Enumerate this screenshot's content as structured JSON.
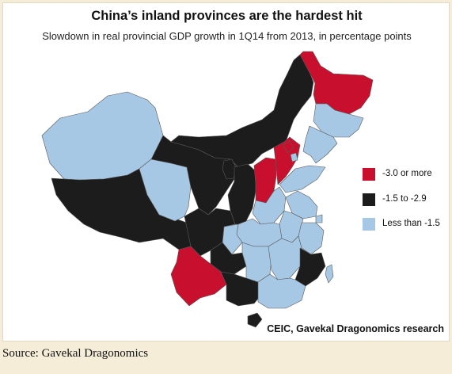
{
  "figure": {
    "title": "China’s inland provinces are the hardest hit",
    "subtitle": "Slowdown in real provincial GDP growth in 1Q14 from 2013, in percentage points",
    "credit": "CEIC, Gavekal Dragonomics research"
  },
  "legend": {
    "items": [
      {
        "label": "-3.0 or more",
        "color": "#c8102e"
      },
      {
        "label": "-1.5 to -2.9",
        "color": "#1c1c1c"
      },
      {
        "label": "Less than -1.5",
        "color": "#a6c8e4"
      }
    ]
  },
  "colors": {
    "red": "#c8102e",
    "black": "#1c1c1c",
    "blue": "#a6c8e4",
    "border": "#5a5a5a",
    "background": "#f6edd9"
  },
  "source": {
    "label": "Source:",
    "value": "Gavekal Dragonomics"
  }
}
